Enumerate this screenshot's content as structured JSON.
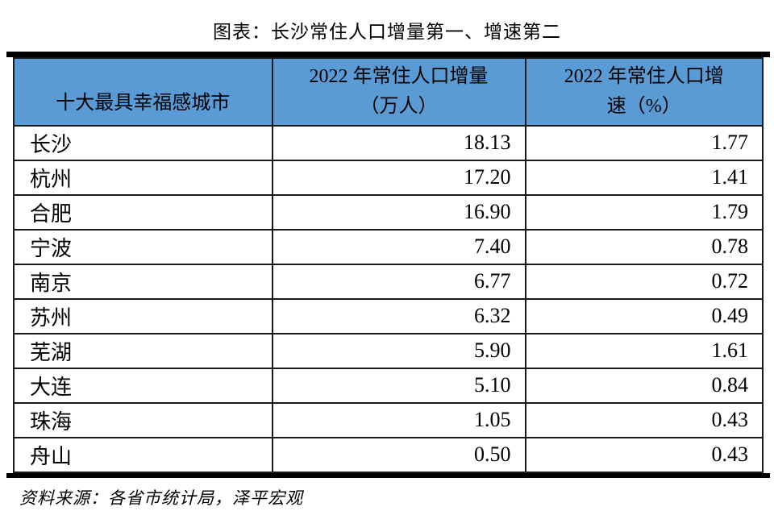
{
  "title": "图表：长沙常住人口增量第一、增速第二",
  "source_note": "资料来源：各省市统计局，泽平宏观",
  "colors": {
    "header_bg": "#5B9BD5",
    "border_color": "#1a1a1a",
    "rule_color": "#000000"
  },
  "table": {
    "col1_header": "十大最具幸福感城市",
    "col2_header_line1": "2022 年常住人口增量",
    "col2_header_line2": "（万人）",
    "col3_header_line1": "2022 年常住人口增",
    "col3_header_line2": "速（%）",
    "rows": [
      {
        "city": "长沙",
        "increase": "18.13",
        "growth": "1.77"
      },
      {
        "city": "杭州",
        "increase": "17.20",
        "growth": "1.41"
      },
      {
        "city": "合肥",
        "increase": "16.90",
        "growth": "1.79"
      },
      {
        "city": "宁波",
        "increase": "7.40",
        "growth": "0.78"
      },
      {
        "city": "南京",
        "increase": "6.77",
        "growth": "0.72"
      },
      {
        "city": "苏州",
        "increase": "6.32",
        "growth": "0.49"
      },
      {
        "city": "芜湖",
        "increase": "5.90",
        "growth": "1.61"
      },
      {
        "city": "大连",
        "increase": "5.10",
        "growth": "0.84"
      },
      {
        "city": "珠海",
        "increase": "1.05",
        "growth": "0.43"
      },
      {
        "city": "舟山",
        "increase": "0.50",
        "growth": "0.43"
      }
    ]
  },
  "chart_data": {
    "type": "table",
    "title": "图表：长沙常住人口增量第一、增速第二",
    "columns": [
      "十大最具幸福感城市",
      "2022年常住人口增量（万人）",
      "2022年常住人口增速（%）"
    ],
    "rows": [
      [
        "长沙",
        18.13,
        1.77
      ],
      [
        "杭州",
        17.2,
        1.41
      ],
      [
        "合肥",
        16.9,
        1.79
      ],
      [
        "宁波",
        7.4,
        0.78
      ],
      [
        "南京",
        6.77,
        0.72
      ],
      [
        "苏州",
        6.32,
        0.49
      ],
      [
        "芜湖",
        5.9,
        1.61
      ],
      [
        "大连",
        5.1,
        0.84
      ],
      [
        "珠海",
        1.05,
        0.43
      ],
      [
        "舟山",
        0.5,
        0.43
      ]
    ],
    "source": "资料来源：各省市统计局，泽平宏观"
  }
}
